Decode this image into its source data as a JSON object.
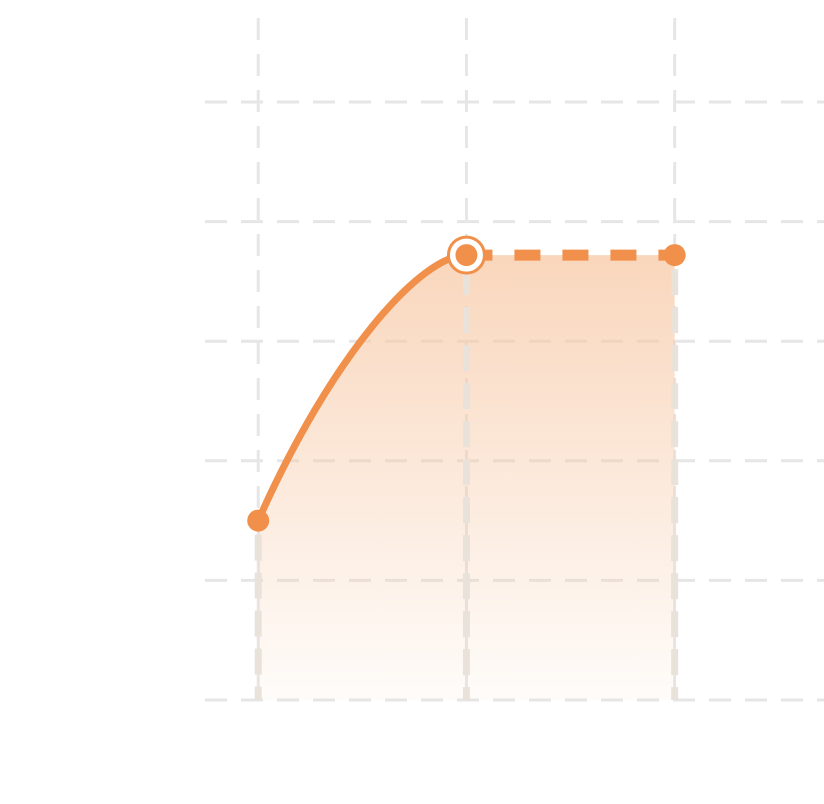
{
  "chart_data": {
    "type": "area",
    "title": "",
    "xlabel": "",
    "ylabel": "",
    "x": [
      0,
      1,
      2
    ],
    "xlim": [
      -1,
      2.65
    ],
    "ylim": [
      0,
      5
    ],
    "grid": true,
    "legend": "none",
    "series": [
      {
        "values": [
          1.5,
          3.72,
          3.72
        ],
        "segments": [
          "solid",
          "dashed"
        ],
        "highlight_index": 1
      }
    ]
  },
  "colors": {
    "line": "#f0904a",
    "fill_top": "#f7c9a6",
    "grid": "#e6e6e6",
    "drop_line": "#e9e2da"
  }
}
